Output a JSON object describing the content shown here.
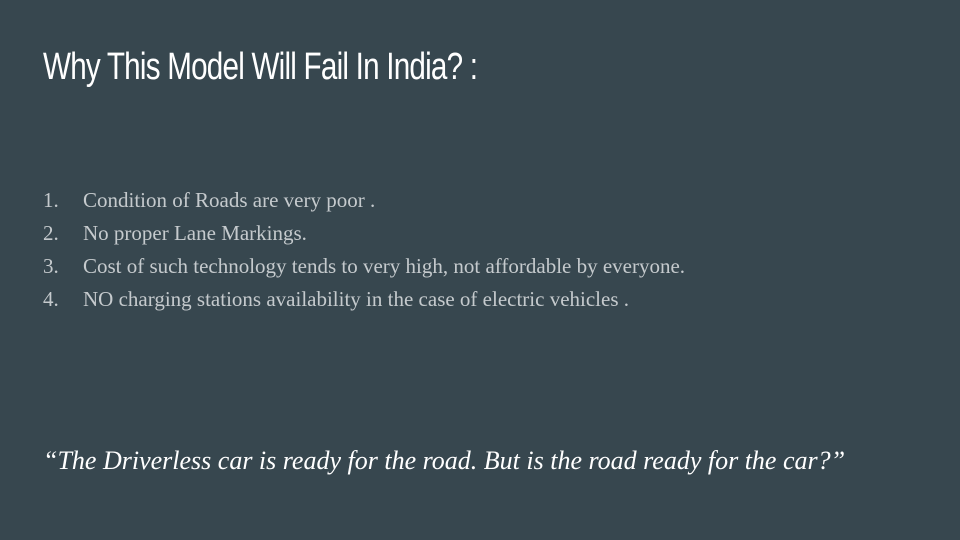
{
  "slide": {
    "title": "Why This Model Will Fail In India? :",
    "items": [
      {
        "number": "1.",
        "text": "Condition of Roads are very poor ."
      },
      {
        "number": "2.",
        "text": "No proper Lane Markings."
      },
      {
        "number": "3.",
        "text": "Cost of such technology tends to very high, not affordable by everyone."
      },
      {
        "number": "4.",
        "text": "NO charging stations availability  in the case of electric vehicles ."
      }
    ],
    "quote": "“The Driverless car is ready for the road. But is the road ready for the car?”"
  },
  "colors": {
    "background": "#37474f",
    "title": "#ffffff",
    "body_text": "#c5cacd",
    "quote": "#ffffff"
  }
}
